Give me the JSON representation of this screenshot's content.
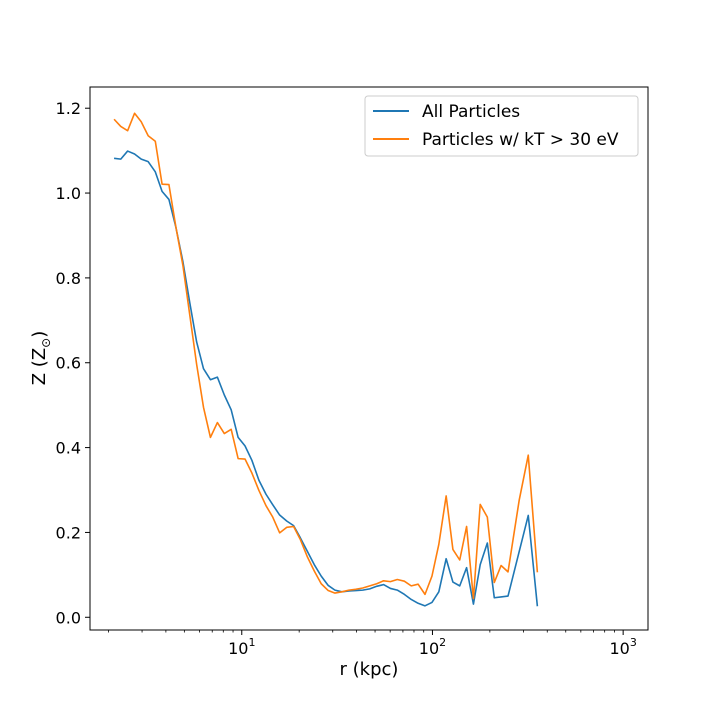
{
  "chart_data": {
    "type": "line",
    "xlabel": "r (kpc)",
    "ylabel": "Z (Z",
    "ylabel_sub": "⊙",
    "ylabel_close": ")",
    "xscale": "log",
    "xlim": [
      1.6,
      1350
    ],
    "ylim": [
      -0.03,
      1.25
    ],
    "x_ticks": [
      {
        "value": 10,
        "base": "10",
        "exp": "1"
      },
      {
        "value": 100,
        "base": "10",
        "exp": "2"
      },
      {
        "value": 1000,
        "base": "10",
        "exp": "3"
      }
    ],
    "y_ticks": [
      "0.0",
      "0.2",
      "0.4",
      "0.6",
      "0.8",
      "1.0",
      "1.2"
    ],
    "y_tick_values": [
      0.0,
      0.2,
      0.4,
      0.6,
      0.8,
      1.0,
      1.2
    ],
    "grid": false,
    "legend_position": "upper right",
    "series": [
      {
        "name": "All Particles",
        "color": "#1f77b4",
        "points": [
          [
            2.14,
            1.082
          ],
          [
            2.32,
            1.08
          ],
          [
            2.52,
            1.099
          ],
          [
            2.74,
            1.092
          ],
          [
            2.97,
            1.08
          ],
          [
            3.23,
            1.074
          ],
          [
            3.52,
            1.05
          ],
          [
            3.82,
            1.004
          ],
          [
            4.15,
            0.985
          ],
          [
            4.51,
            0.92
          ],
          [
            4.91,
            0.839
          ],
          [
            5.34,
            0.741
          ],
          [
            5.8,
            0.649
          ],
          [
            6.3,
            0.586
          ],
          [
            6.85,
            0.56
          ],
          [
            7.45,
            0.566
          ],
          [
            8.1,
            0.524
          ],
          [
            8.8,
            0.489
          ],
          [
            9.57,
            0.424
          ],
          [
            10.4,
            0.404
          ],
          [
            11.3,
            0.37
          ],
          [
            12.3,
            0.323
          ],
          [
            13.4,
            0.29
          ],
          [
            14.5,
            0.266
          ],
          [
            15.8,
            0.241
          ],
          [
            17.2,
            0.227
          ],
          [
            18.7,
            0.216
          ],
          [
            20.3,
            0.187
          ],
          [
            22.1,
            0.155
          ],
          [
            24.0,
            0.124
          ],
          [
            26.1,
            0.097
          ],
          [
            28.4,
            0.075
          ],
          [
            30.8,
            0.064
          ],
          [
            33.5,
            0.06
          ],
          [
            36.5,
            0.062
          ],
          [
            39.6,
            0.063
          ],
          [
            43.1,
            0.064
          ],
          [
            46.9,
            0.067
          ],
          [
            51.0,
            0.073
          ],
          [
            55.4,
            0.077
          ],
          [
            60.2,
            0.068
          ],
          [
            65.4,
            0.064
          ],
          [
            71.2,
            0.054
          ],
          [
            77.4,
            0.042
          ],
          [
            84.1,
            0.033
          ],
          [
            91.4,
            0.027
          ],
          [
            99.4,
            0.035
          ],
          [
            108.0,
            0.06
          ],
          [
            118.0,
            0.138
          ],
          [
            128.0,
            0.083
          ],
          [
            139.0,
            0.074
          ],
          [
            151.0,
            0.117
          ],
          [
            164.0,
            0.031
          ],
          [
            178.0,
            0.124
          ],
          [
            194.0,
            0.175
          ],
          [
            211.0,
            0.046
          ],
          [
            229.0,
            0.048
          ],
          [
            249.0,
            0.05
          ],
          [
            285.0,
            0.155
          ],
          [
            318.0,
            0.24
          ],
          [
            355.0,
            0.026
          ]
        ]
      },
      {
        "name": "Particles w/ kT > 30 eV",
        "color": "#ff7f0e",
        "points": [
          [
            2.14,
            1.174
          ],
          [
            2.32,
            1.157
          ],
          [
            2.52,
            1.147
          ],
          [
            2.74,
            1.188
          ],
          [
            2.97,
            1.168
          ],
          [
            3.23,
            1.135
          ],
          [
            3.52,
            1.122
          ],
          [
            3.82,
            1.021
          ],
          [
            4.15,
            1.02
          ],
          [
            4.51,
            0.921
          ],
          [
            4.91,
            0.83
          ],
          [
            5.34,
            0.712
          ],
          [
            5.8,
            0.596
          ],
          [
            6.3,
            0.495
          ],
          [
            6.85,
            0.424
          ],
          [
            7.45,
            0.459
          ],
          [
            8.1,
            0.433
          ],
          [
            8.8,
            0.443
          ],
          [
            9.57,
            0.374
          ],
          [
            10.4,
            0.373
          ],
          [
            11.3,
            0.34
          ],
          [
            12.3,
            0.299
          ],
          [
            13.4,
            0.263
          ],
          [
            14.5,
            0.237
          ],
          [
            15.8,
            0.199
          ],
          [
            17.2,
            0.212
          ],
          [
            18.7,
            0.214
          ],
          [
            20.3,
            0.183
          ],
          [
            22.1,
            0.142
          ],
          [
            24.0,
            0.109
          ],
          [
            26.1,
            0.079
          ],
          [
            28.4,
            0.063
          ],
          [
            30.8,
            0.057
          ],
          [
            33.5,
            0.06
          ],
          [
            36.5,
            0.064
          ],
          [
            39.6,
            0.066
          ],
          [
            43.1,
            0.069
          ],
          [
            46.9,
            0.074
          ],
          [
            51.0,
            0.079
          ],
          [
            55.4,
            0.086
          ],
          [
            60.2,
            0.084
          ],
          [
            65.4,
            0.089
          ],
          [
            71.2,
            0.085
          ],
          [
            77.4,
            0.074
          ],
          [
            84.1,
            0.078
          ],
          [
            91.4,
            0.054
          ],
          [
            99.4,
            0.097
          ],
          [
            108.0,
            0.172
          ],
          [
            118.0,
            0.286
          ],
          [
            128.0,
            0.16
          ],
          [
            139.0,
            0.135
          ],
          [
            151.0,
            0.214
          ],
          [
            164.0,
            0.044
          ],
          [
            178.0,
            0.266
          ],
          [
            194.0,
            0.236
          ],
          [
            211.0,
            0.082
          ],
          [
            229.0,
            0.122
          ],
          [
            249.0,
            0.107
          ],
          [
            285.0,
            0.276
          ],
          [
            318.0,
            0.382
          ],
          [
            355.0,
            0.106
          ]
        ]
      }
    ]
  }
}
